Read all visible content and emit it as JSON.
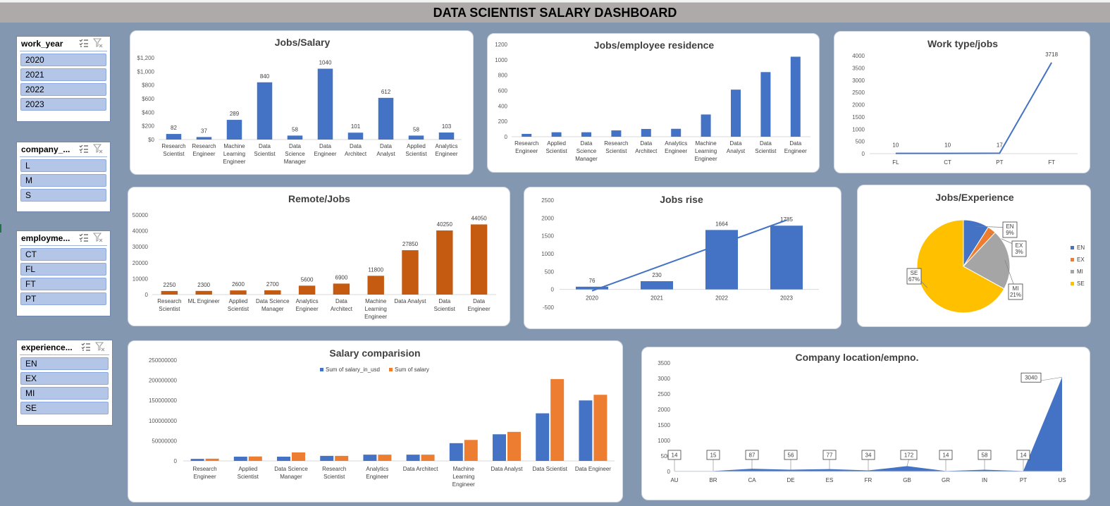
{
  "title": "DATA SCIENTIST SALARY DASHBOARD",
  "slicers": [
    {
      "id": "work_year",
      "title": "work_year",
      "items": [
        "2020",
        "2021",
        "2022",
        "2023"
      ]
    },
    {
      "id": "company",
      "title": "company_...",
      "items": [
        "L",
        "M",
        "S"
      ]
    },
    {
      "id": "employment",
      "title": "employme...",
      "items": [
        "CT",
        "FL",
        "FT",
        "PT"
      ]
    },
    {
      "id": "experience",
      "title": "experience...",
      "items": [
        "EN",
        "EX",
        "MI",
        "SE"
      ]
    }
  ],
  "icons": {
    "multiselect": "multi-select-icon",
    "clear": "clear-filter-icon"
  },
  "colors": {
    "blue": "#4472c4",
    "orange": "#ed7d31",
    "rust": "#c55a11",
    "gray": "#a5a5a5",
    "gold": "#ffc000"
  },
  "charts": [
    {
      "id": "jobs_salary",
      "type": "bar",
      "title": "Jobs/Salary",
      "categories": [
        [
          "Research",
          "Scientist"
        ],
        [
          "Research",
          "Engineer"
        ],
        [
          "Machine",
          "Learning",
          "Engineer"
        ],
        [
          "Data",
          "Scientist"
        ],
        [
          "Data",
          "Science",
          "Manager"
        ],
        [
          "Data",
          "Engineer"
        ],
        [
          "Data",
          "Architect"
        ],
        [
          "Data",
          "Analyst"
        ],
        [
          "Applied",
          "Scientist"
        ],
        [
          "Analytics",
          "Engineer"
        ]
      ],
      "values": [
        82,
        37,
        289,
        840,
        58,
        1040,
        101,
        612,
        58,
        103
      ],
      "ylim": [
        0,
        1200
      ],
      "ticks": [
        0,
        200,
        400,
        600,
        800,
        1000,
        1200
      ],
      "tick_labels": [
        "$0",
        "$200",
        "$400",
        "$600",
        "$800",
        "$1,000",
        "$1,200"
      ],
      "data_labels": true,
      "color": "#4472c4"
    },
    {
      "id": "jobs_residence",
      "type": "bar",
      "title": "Jobs/employee residence",
      "categories": [
        [
          "Research",
          "Engineer"
        ],
        [
          "Applied",
          "Scientist"
        ],
        [
          "Data",
          "Science",
          "Manager"
        ],
        [
          "Research",
          "Scientist"
        ],
        [
          "Data",
          "Architect"
        ],
        [
          "Analytics",
          "Engineer"
        ],
        [
          "Machine",
          "Learning",
          "Engineer"
        ],
        [
          "Data",
          "Analyst"
        ],
        [
          "Data",
          "Scientist"
        ],
        [
          "Data",
          "Engineer"
        ]
      ],
      "values": [
        37,
        58,
        58,
        82,
        101,
        103,
        289,
        612,
        840,
        1040
      ],
      "ylim": [
        0,
        1200
      ],
      "ticks": [
        0,
        200,
        400,
        600,
        800,
        1000,
        1200
      ],
      "tick_labels": [
        "0",
        "200",
        "400",
        "600",
        "800",
        "1000",
        "1200"
      ],
      "data_labels": false,
      "color": "#4472c4"
    },
    {
      "id": "work_type",
      "type": "line",
      "title": "Work type/jobs",
      "categories": [
        "FL",
        "CT",
        "PT",
        "FT"
      ],
      "values": [
        10,
        10,
        17,
        3718
      ],
      "ylim": [
        0,
        4000
      ],
      "ticks": [
        0,
        500,
        1000,
        1500,
        2000,
        2500,
        3000,
        3500,
        4000
      ],
      "tick_labels": [
        "0",
        "500",
        "1000",
        "1500",
        "2000",
        "2500",
        "3000",
        "3500",
        "4000"
      ],
      "color": "#4472c4"
    },
    {
      "id": "remote_jobs",
      "type": "bar",
      "title": "Remote/Jobs",
      "categories": [
        [
          "Research",
          "Scientist"
        ],
        [
          "ML Engineer"
        ],
        [
          "Applied",
          "Scientist"
        ],
        [
          "Data Science",
          "Manager"
        ],
        [
          "Analytics",
          "Engineer"
        ],
        [
          "Data",
          "Architect"
        ],
        [
          "Machine",
          "Learning",
          "Engineer"
        ],
        [
          "Data Analyst"
        ],
        [
          "Data",
          "Scientist"
        ],
        [
          "Data",
          "Engineer"
        ]
      ],
      "values": [
        2250,
        2300,
        2600,
        2700,
        5600,
        6900,
        11800,
        27850,
        40250,
        44050
      ],
      "ylim": [
        0,
        50000
      ],
      "ticks": [
        0,
        10000,
        20000,
        30000,
        40000,
        50000
      ],
      "tick_labels": [
        "0",
        "10000",
        "20000",
        "30000",
        "40000",
        "50000"
      ],
      "data_labels": true,
      "color": "#c55a11"
    },
    {
      "id": "jobs_rise",
      "type": "combo",
      "title": "Jobs rise",
      "categories": [
        "2020",
        "2021",
        "2022",
        "2023"
      ],
      "values": [
        76,
        230,
        1664,
        1785
      ],
      "trend": [
        -40,
        1940
      ],
      "ylim": [
        -500,
        2500
      ],
      "ticks": [
        -500,
        0,
        500,
        1000,
        1500,
        2000,
        2500
      ],
      "tick_labels": [
        "-500",
        "0",
        "500",
        "1000",
        "1500",
        "2000",
        "2500"
      ],
      "color": "#4472c4"
    },
    {
      "id": "jobs_experience",
      "type": "pie",
      "title": "Jobs/Experience",
      "slices": [
        {
          "name": "EN",
          "value": 9,
          "label": [
            "EN",
            "9%"
          ],
          "color": "#4472c4"
        },
        {
          "name": "EX",
          "value": 3,
          "label": [
            "EX",
            "3%"
          ],
          "color": "#ed7d31"
        },
        {
          "name": "MI",
          "value": 21,
          "label": [
            "MI",
            "21%"
          ],
          "color": "#a5a5a5"
        },
        {
          "name": "SE",
          "value": 67,
          "label": [
            "SE",
            "67%"
          ],
          "color": "#ffc000"
        }
      ]
    },
    {
      "id": "salary_comparison",
      "type": "bar",
      "title": "Salary comparision",
      "categories": [
        [
          "Research",
          "Engineer"
        ],
        [
          "Applied",
          "Scientist"
        ],
        [
          "Data Science",
          "Manager"
        ],
        [
          "Research",
          "Scientist"
        ],
        [
          "Analytics",
          "Engineer"
        ],
        [
          "Data Architect"
        ],
        [
          "Machine",
          "Learning",
          "Engineer"
        ],
        [
          "Data Analyst"
        ],
        [
          "Data Scientist"
        ],
        [
          "Data Engineer"
        ]
      ],
      "series": [
        {
          "name": "Sum of salary_in_usd",
          "color": "#4472c4",
          "values": [
            5000000,
            10500000,
            10500000,
            12500000,
            15500000,
            15500000,
            44000000,
            66000000,
            118000000,
            150000000
          ]
        },
        {
          "name": "Sum of salary",
          "color": "#ed7d31",
          "values": [
            5500000,
            11000000,
            21000000,
            12500000,
            15500000,
            15500000,
            52000000,
            72000000,
            203000000,
            164000000
          ]
        }
      ],
      "ylim": [
        0,
        250000000
      ],
      "ticks": [
        0,
        50000000,
        100000000,
        150000000,
        200000000,
        250000000
      ],
      "tick_labels": [
        "0",
        "50000000",
        "100000000",
        "150000000",
        "200000000",
        "250000000"
      ]
    },
    {
      "id": "company_location",
      "type": "area",
      "title": "Company location/empno.",
      "categories": [
        "AU",
        "BR",
        "CA",
        "DE",
        "ES",
        "FR",
        "GB",
        "GR",
        "IN",
        "PT",
        "US"
      ],
      "values": [
        14,
        15,
        87,
        56,
        77,
        34,
        172,
        14,
        58,
        14,
        3040
      ],
      "ylim": [
        0,
        3500
      ],
      "ticks": [
        0,
        500,
        1000,
        1500,
        2000,
        2500,
        3000,
        3500
      ],
      "tick_labels": [
        "0",
        "500",
        "1000",
        "1500",
        "2000",
        "2500",
        "3000",
        "3500"
      ],
      "color": "#4472c4"
    }
  ]
}
